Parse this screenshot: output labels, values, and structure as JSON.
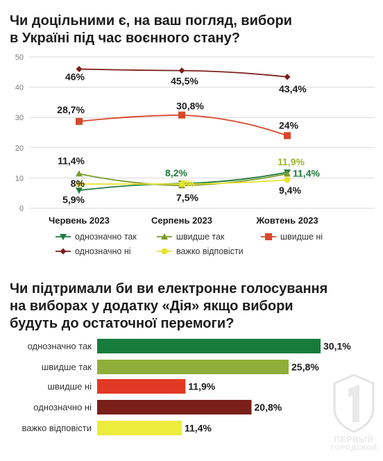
{
  "chart_data": [
    {
      "type": "line",
      "title": "Чи доцільними є, на ваш погляд, вибори\nв Україні під час воєнного стану?",
      "categories": [
        "Червень 2023",
        "Серпень 2023",
        "Жовтень 2023"
      ],
      "ylim": [
        0,
        50
      ],
      "yticks": [
        0,
        10,
        20,
        30,
        40,
        50
      ],
      "grid": true,
      "legend_position": "bottom",
      "series": [
        {
          "name": "однозначно так",
          "values": [
            5.9,
            8.2,
            11.9
          ],
          "labels": [
            "5,9%",
            "8,2%",
            "11,9%"
          ],
          "color": "#1e7a3c",
          "marker": "triangle-down"
        },
        {
          "name": "швидше так",
          "values": [
            11.4,
            7.5,
            11.4
          ],
          "labels": [
            "11,4%",
            "7,5%",
            "11,4%"
          ],
          "color": "#7a9a2a",
          "marker": "triangle-up"
        },
        {
          "name": "швидше ні",
          "values": [
            28.7,
            30.8,
            24
          ],
          "labels": [
            "28,7%",
            "30,8%",
            "24%"
          ],
          "color": "#d9472a",
          "marker": "square"
        },
        {
          "name": "однозначно ні",
          "values": [
            46,
            45.5,
            43.4
          ],
          "labels": [
            "46%",
            "45,5%",
            "43,4%"
          ],
          "color": "#7a1f1a",
          "marker": "diamond"
        },
        {
          "name": "важко відповісти",
          "values": [
            8,
            8,
            9.4
          ],
          "labels": [
            "8%",
            "8%",
            "9,4%"
          ],
          "color": "#e8e22c",
          "marker": "circle"
        }
      ]
    },
    {
      "type": "bar",
      "orientation": "horizontal",
      "title": "Чи підтримали би ви електронне голосування\nна виборах у додатку «Дія» якщо вибори\nбудуть до остаточної перемоги?",
      "categories": [
        "однозначно так",
        "швидше так",
        "швидше ні",
        "однозначно ні",
        "важко відповісти"
      ],
      "values": [
        30.1,
        25.8,
        11.9,
        20.8,
        11.4
      ],
      "labels": [
        "30,1%",
        "25,8%",
        "11,9%",
        "20,8%",
        "11,4%"
      ],
      "colors": [
        "#157c3b",
        "#8fae3a",
        "#e23a24",
        "#7a1f1a",
        "#ecec3c"
      ]
    }
  ],
  "logo": {
    "line1": "ПЕРВЫЙ",
    "line2": "ГОРОДСКОЙ"
  }
}
